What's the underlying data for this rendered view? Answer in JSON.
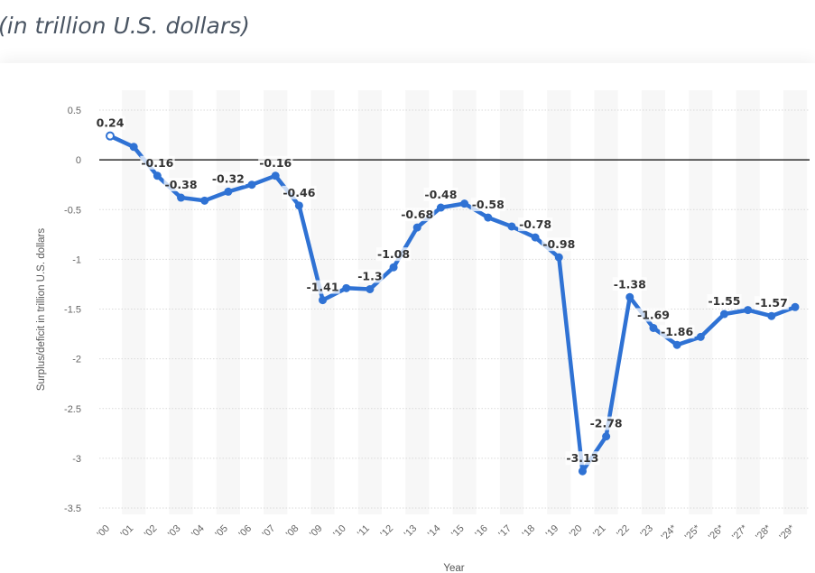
{
  "header": {
    "subtitle": "(in trillion U.S. dollars)"
  },
  "colors": {
    "series": "#2f72d4",
    "band": "#f7f7f7",
    "grid": "#d9d9d9",
    "zero_line": "#000000"
  },
  "chart_data": {
    "type": "line",
    "title": "",
    "xlabel": "Year",
    "ylabel": "Surplus/deficit in trillion U.S. dollars",
    "ylim": [
      -3.5,
      0.5
    ],
    "yticks": [
      0.5,
      0,
      -0.5,
      -1,
      -1.5,
      -2,
      -2.5,
      -3,
      -3.5
    ],
    "ytick_labels": [
      "0.5",
      "0",
      "-0.5",
      "-1",
      "-1.5",
      "-2",
      "-2.5",
      "-3",
      "-3.5"
    ],
    "grid": true,
    "legend": "none",
    "categories": [
      "'00",
      "'01",
      "'02",
      "'03",
      "'04",
      "'05",
      "'06",
      "'07",
      "'08",
      "'09",
      "'10",
      "'11",
      "'12",
      "'13",
      "'14",
      "'15",
      "'16",
      "'17",
      "'18",
      "'19",
      "'20",
      "'21",
      "'22",
      "'23",
      "'24*",
      "'25*",
      "'26*",
      "'27*",
      "'28*",
      "'29*"
    ],
    "series": [
      {
        "values": [
          0.24,
          0.13,
          -0.16,
          -0.38,
          -0.41,
          -0.32,
          -0.25,
          -0.16,
          -0.46,
          -1.41,
          -1.29,
          -1.3,
          -1.08,
          -0.68,
          -0.48,
          -0.44,
          -0.58,
          -0.67,
          -0.78,
          -0.98,
          -3.13,
          -2.78,
          -1.38,
          -1.69,
          -1.86,
          -1.78,
          -1.55,
          -1.51,
          -1.57,
          -1.48
        ]
      }
    ],
    "data_labels": [
      {
        "index": 0,
        "text": "0.24"
      },
      {
        "index": 2,
        "text": "-0.16"
      },
      {
        "index": 3,
        "text": "-0.38"
      },
      {
        "index": 5,
        "text": "-0.32"
      },
      {
        "index": 7,
        "text": "-0.16"
      },
      {
        "index": 8,
        "text": "-0.46"
      },
      {
        "index": 9,
        "text": "-1.41"
      },
      {
        "index": 11,
        "text": "-1.3"
      },
      {
        "index": 12,
        "text": "-1.08"
      },
      {
        "index": 13,
        "text": "-0.68"
      },
      {
        "index": 14,
        "text": "-0.48"
      },
      {
        "index": 16,
        "text": "-0.58"
      },
      {
        "index": 18,
        "text": "-0.78"
      },
      {
        "index": 19,
        "text": "-0.98"
      },
      {
        "index": 20,
        "text": "-3.13"
      },
      {
        "index": 21,
        "text": "-2.78"
      },
      {
        "index": 22,
        "text": "-1.38"
      },
      {
        "index": 23,
        "text": "-1.69"
      },
      {
        "index": 24,
        "text": "-1.86"
      },
      {
        "index": 26,
        "text": "-1.55"
      },
      {
        "index": 28,
        "text": "-1.57"
      }
    ]
  }
}
